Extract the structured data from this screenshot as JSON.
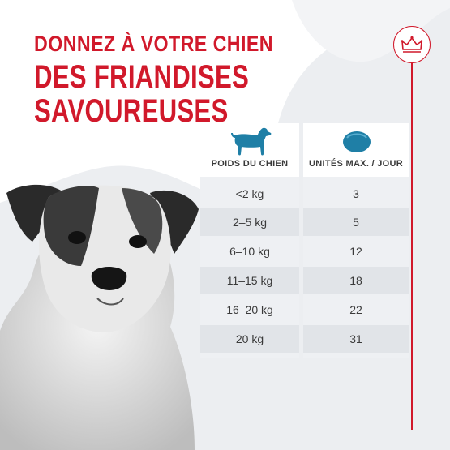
{
  "headline": {
    "line1": "DONNEZ À VOTRE CHIEN",
    "line2": "DES FRIANDISES",
    "line3": "SAVOUREUSES"
  },
  "colors": {
    "brand_red": "#d1192b",
    "icon_blue": "#1f7fa6",
    "table_bg": "#eef0f3"
  },
  "table": {
    "headers": [
      "POIDS DU CHIEN",
      "UNITÉS MAX. / JOUR"
    ],
    "rows": [
      [
        "<2 kg",
        "3"
      ],
      [
        "2–5 kg",
        "5"
      ],
      [
        "6–10 kg",
        "12"
      ],
      [
        "11–15 kg",
        "18"
      ],
      [
        "16–20 kg",
        "22"
      ],
      [
        "20 kg",
        "31"
      ]
    ]
  },
  "icons": {
    "brand": "crown-icon",
    "dog": "dog-icon",
    "treat": "treat-icon"
  }
}
